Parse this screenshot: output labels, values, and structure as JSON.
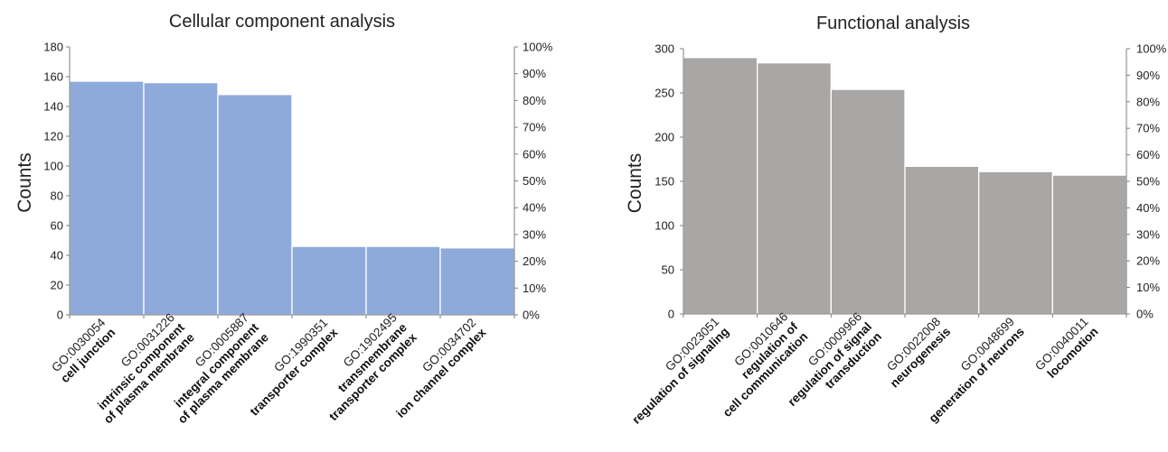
{
  "chart_data": [
    {
      "type": "bar",
      "title": "Cellular component analysis",
      "ylabel": "Counts",
      "ylim": [
        0,
        180
      ],
      "yticks": [
        "0",
        "20",
        "40",
        "60",
        "80",
        "100",
        "120",
        "140",
        "160",
        "180"
      ],
      "y2ticks": [
        "0%",
        "10%",
        "20%",
        "30%",
        "40%",
        "50%",
        "60%",
        "70%",
        "80%",
        "90%",
        "100%"
      ],
      "bar_color": "#8eaadb",
      "categories": [
        {
          "id": "GO:0030054",
          "desc": [
            "cell junction"
          ]
        },
        {
          "id": "GO:0031226",
          "desc": [
            "intrinsic component",
            "of plasma membrane"
          ]
        },
        {
          "id": "GO:0005887",
          "desc": [
            "integral component",
            "of plasma membrane"
          ]
        },
        {
          "id": "GO:1990351",
          "desc": [
            "transporter complex"
          ]
        },
        {
          "id": "GO:1902495",
          "desc": [
            "transmembrane",
            "transporter complex"
          ]
        },
        {
          "id": "GO:0034702",
          "desc": [
            "ion channel complex"
          ]
        }
      ],
      "values": [
        157,
        156,
        148,
        46,
        46,
        45
      ]
    },
    {
      "type": "bar",
      "title": "Functional analysis",
      "ylabel": "Counts",
      "ylim": [
        0,
        300
      ],
      "yticks": [
        "0",
        "50",
        "100",
        "150",
        "200",
        "250",
        "300"
      ],
      "y2ticks": [
        "0%",
        "10%",
        "20%",
        "30%",
        "40%",
        "50%",
        "60%",
        "70%",
        "80%",
        "90%",
        "100%"
      ],
      "bar_color": "#a9a6a6",
      "categories": [
        {
          "id": "GO:0023051",
          "desc": [
            "regulation of signaling"
          ]
        },
        {
          "id": "GO:0010646",
          "desc": [
            "regulation of",
            "cell communication"
          ]
        },
        {
          "id": "GO:0009966",
          "desc": [
            "regulation of signal",
            "transduction"
          ]
        },
        {
          "id": "GO:0022008",
          "desc": [
            "neurogenesis"
          ]
        },
        {
          "id": "GO:0048699",
          "desc": [
            "generation of neurons"
          ]
        },
        {
          "id": "GO:0040011",
          "desc": [
            "locomotion"
          ]
        }
      ],
      "values": [
        290,
        284,
        254,
        167,
        161,
        157
      ]
    }
  ]
}
